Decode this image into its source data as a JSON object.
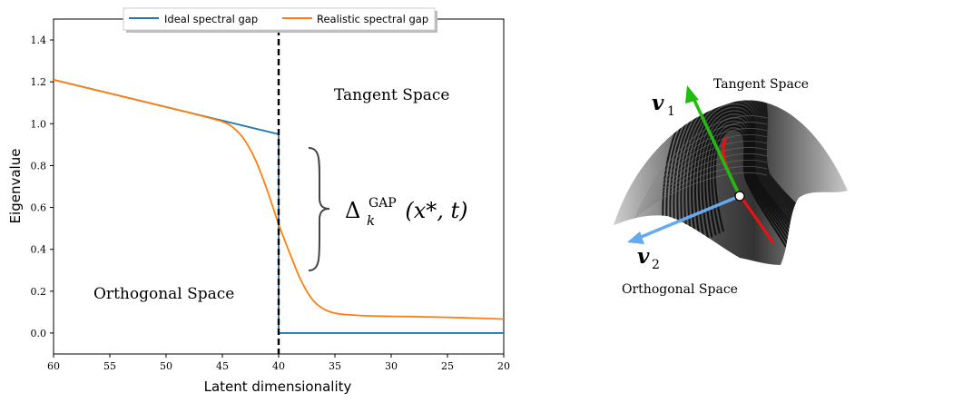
{
  "chart_data": {
    "type": "line",
    "title": "",
    "xlabel": "Latent dimensionality",
    "ylabel": "Eigenvalue",
    "xlim": [
      60,
      20
    ],
    "ylim": [
      -0.1,
      1.5
    ],
    "x_ticks": [
      60,
      55,
      50,
      45,
      40,
      35,
      30,
      25,
      20
    ],
    "y_ticks": [
      0.0,
      0.2,
      0.4,
      0.6,
      0.8,
      1.0,
      1.2,
      1.4
    ],
    "x_tick_labels": [
      "60",
      "55",
      "50",
      "45",
      "40",
      "35",
      "30",
      "25",
      "20"
    ],
    "y_tick_labels": [
      "0.0",
      "0.2",
      "0.4",
      "0.6",
      "0.8",
      "1.0",
      "1.2",
      "1.4"
    ],
    "grid": false,
    "legend_position": "top-center",
    "series": [
      {
        "name": "Ideal spectral gap",
        "color": "#1f77b4",
        "x": [
          60,
          55,
          50,
          45,
          40,
          40,
          35,
          30,
          25,
          20
        ],
        "y": [
          1.21,
          1.145,
          1.08,
          1.015,
          0.95,
          0.0,
          0.0,
          0.0,
          0.0,
          0.0
        ]
      },
      {
        "name": "Realistic spectral gap",
        "color": "#ff7f0e",
        "x": [
          60,
          55,
          50,
          47,
          45,
          44,
          43,
          42,
          41,
          40,
          39,
          38,
          37,
          36,
          35,
          34,
          32,
          30,
          25,
          20
        ],
        "y": [
          1.21,
          1.145,
          1.08,
          1.04,
          1.01,
          0.98,
          0.92,
          0.82,
          0.68,
          0.52,
          0.38,
          0.25,
          0.16,
          0.115,
          0.095,
          0.088,
          0.082,
          0.08,
          0.075,
          0.067
        ]
      }
    ],
    "annotations": {
      "divider_x": 40,
      "divider_style": "dashed-black",
      "tangent_label": "Tangent Space",
      "orthogonal_label": "Orthogonal Space",
      "gap_symbol": "Δ",
      "gap_subscript": "k",
      "gap_superscript": "GAP",
      "gap_args": "(x*, t)"
    }
  },
  "manifold_figure": {
    "tangent_label": "Tangent Space",
    "orthogonal_label": "Orthogonal Space",
    "vector_1_label": "v",
    "vector_1_index": "1",
    "vector_2_label": "v",
    "vector_2_index": "2",
    "vector_1_color": "#22bb11",
    "vector_2_color": "#66aaee",
    "highlight_curve_color": "#ee1111"
  }
}
